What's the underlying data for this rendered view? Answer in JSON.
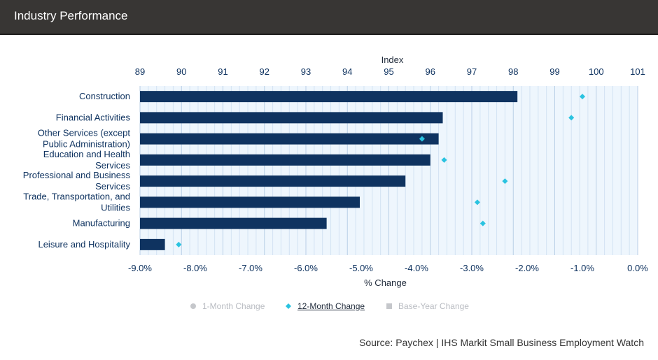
{
  "header": {
    "title": "Industry Performance"
  },
  "chart_data": {
    "type": "bar",
    "orientation": "horizontal",
    "categories": [
      "Construction",
      "Financial Activities",
      "Other Services (except Public Administration)",
      "Education and Health Services",
      "Professional and Business Services",
      "Trade, Transportation, and Utilities",
      "Manufacturing",
      "Leisure and Hospitality"
    ],
    "category_lines": [
      [
        "Construction"
      ],
      [
        "Financial Activities"
      ],
      [
        "Other Services (except",
        "Public Administration)"
      ],
      [
        "Education and Health",
        "Services"
      ],
      [
        "Professional and Business",
        "Services"
      ],
      [
        "Trade, Transportation, and",
        "Utilities"
      ],
      [
        "Manufacturing"
      ],
      [
        "Leisure and Hospitality"
      ]
    ],
    "top_axis": {
      "label": "Index",
      "range": [
        89,
        101
      ],
      "ticks": [
        "89",
        "90",
        "91",
        "92",
        "93",
        "94",
        "95",
        "96",
        "97",
        "98",
        "99",
        "100",
        "101"
      ]
    },
    "bottom_axis": {
      "label": "% Change",
      "range": [
        -9,
        0
      ],
      "ticks": [
        "-9.0%",
        "-8.0%",
        "-7.0%",
        "-6.0%",
        "-5.0%",
        "-4.0%",
        "-3.0%",
        "-2.0%",
        "-1.0%",
        "0.0%"
      ]
    },
    "series": [
      {
        "name": "Index",
        "type": "bar",
        "axis": "top",
        "color": "#0f3360",
        "values": [
          98.1,
          96.3,
          96.2,
          96.0,
          95.4,
          94.3,
          93.5,
          89.6
        ]
      },
      {
        "name": "12-Month Change",
        "type": "diamond",
        "axis": "bottom",
        "color": "#2ac3e0",
        "values": [
          -1.0,
          -1.2,
          -3.9,
          -3.5,
          -2.4,
          -2.9,
          -2.8,
          -8.3
        ]
      }
    ],
    "grid": true
  },
  "legend": [
    {
      "label": "1-Month Change",
      "marker": "circle",
      "active": false
    },
    {
      "label": "12-Month Change",
      "marker": "diamond",
      "active": true
    },
    {
      "label": "Base-Year Change",
      "marker": "square",
      "active": false
    }
  ],
  "source": "Source: Paychex | IHS Markit Small Business Employment Watch"
}
